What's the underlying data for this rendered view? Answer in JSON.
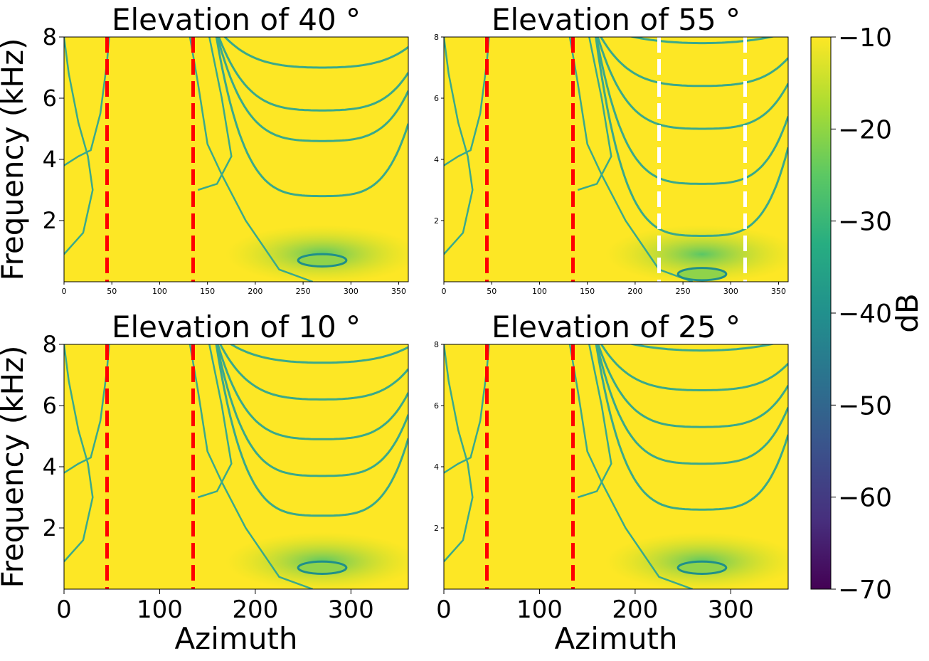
{
  "figure": {
    "colorbar": {
      "label": "dB",
      "vmin": -70,
      "vmax": -10,
      "ticks": [
        "−10",
        "−20",
        "−30",
        "−40",
        "−50",
        "−60",
        "−70"
      ],
      "tick_values": [
        -10,
        -20,
        -30,
        -40,
        -50,
        -60,
        -70
      ],
      "colormap": "viridis"
    },
    "colors": {
      "background": "#fde725",
      "contour": "#3aa98b",
      "contour_dark": "#1f8f8a",
      "red_marker": "#ff0000",
      "white_marker": "#ffffff"
    }
  },
  "chart_data": [
    {
      "type": "heatmap",
      "title": "Elevation of 40 °",
      "xlabel": "",
      "ylabel": "Frequency (kHz)",
      "xlim": [
        0,
        360
      ],
      "ylim": [
        0,
        8
      ],
      "xticks": [
        0,
        50,
        100,
        150,
        200,
        250,
        300,
        350
      ],
      "yticks": [
        2,
        4,
        6,
        8
      ],
      "markers": [
        {
          "azimuth": 45,
          "color": "red",
          "style": "dashed"
        },
        {
          "azimuth": 135,
          "color": "red",
          "style": "dashed"
        }
      ],
      "nulls_khz": [
        2.8,
        4.6,
        5.6,
        7.0
      ],
      "minimum": {
        "azimuth": 270,
        "frequency": 0.7
      }
    },
    {
      "type": "heatmap",
      "title": "Elevation of 55 °",
      "xlabel": "",
      "ylabel": "",
      "xlim": [
        0,
        360
      ],
      "ylim": [
        0,
        8
      ],
      "xticks": [
        0,
        50,
        100,
        150,
        200,
        250,
        300,
        350
      ],
      "yticks": [
        2,
        4,
        6,
        8
      ],
      "markers": [
        {
          "azimuth": 45,
          "color": "red",
          "style": "dashed"
        },
        {
          "azimuth": 135,
          "color": "red",
          "style": "dashed"
        },
        {
          "azimuth": 225,
          "color": "white",
          "style": "dashed"
        },
        {
          "azimuth": 315,
          "color": "white",
          "style": "dashed"
        }
      ],
      "nulls_khz": [
        1.5,
        3.2,
        5.0,
        6.4,
        7.8
      ],
      "minimum": {
        "azimuth": 270,
        "frequency": 0.25
      }
    },
    {
      "type": "heatmap",
      "title": "Elevation of 10 °",
      "xlabel": "Azimuth",
      "ylabel": "Frequency (kHz)",
      "xlim": [
        0,
        360
      ],
      "ylim": [
        0,
        8
      ],
      "xticks": [
        0,
        100,
        200,
        300
      ],
      "yticks": [
        2,
        4,
        6,
        8
      ],
      "markers": [
        {
          "azimuth": 45,
          "color": "red",
          "style": "dashed"
        },
        {
          "azimuth": 135,
          "color": "red",
          "style": "dashed"
        }
      ],
      "nulls_khz": [
        2.4,
        3.7,
        4.9,
        6.2,
        7.4
      ],
      "minimum": {
        "azimuth": 270,
        "frequency": 0.7
      }
    },
    {
      "type": "heatmap",
      "title": "Elevation of 25 °",
      "xlabel": "Azimuth",
      "ylabel": "",
      "xlim": [
        0,
        360
      ],
      "ylim": [
        0,
        8
      ],
      "xticks": [
        0,
        100,
        200,
        300
      ],
      "yticks": [
        2,
        4,
        6,
        8
      ],
      "markers": [
        {
          "azimuth": 45,
          "color": "red",
          "style": "dashed"
        },
        {
          "azimuth": 135,
          "color": "red",
          "style": "dashed"
        }
      ],
      "nulls_khz": [
        2.6,
        4.1,
        5.3,
        6.5,
        7.8
      ],
      "minimum": {
        "azimuth": 270,
        "frequency": 0.7
      }
    }
  ]
}
